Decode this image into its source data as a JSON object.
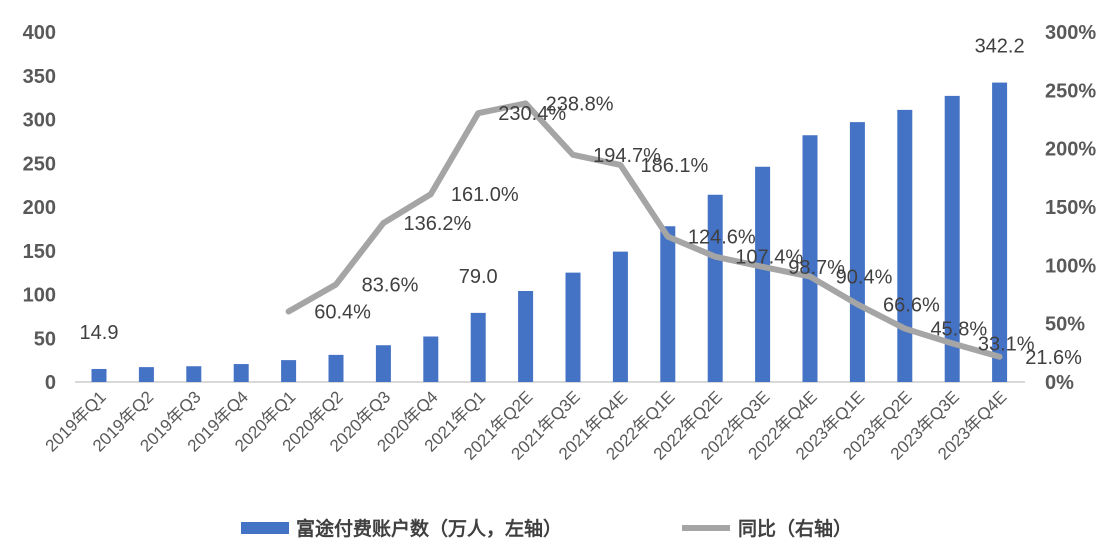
{
  "chart_data": {
    "type": "bar+line",
    "categories": [
      "2019年Q1",
      "2019年Q2",
      "2019年Q3",
      "2019年Q4",
      "2020年Q1",
      "2020年Q2",
      "2020年Q3",
      "2020年Q4",
      "2021年Q1",
      "2021年Q2E",
      "2021年Q3E",
      "2021年Q4E",
      "2022年Q1E",
      "2022年Q2E",
      "2022年Q3E",
      "2022年Q4E",
      "2023年Q1E",
      "2023年Q2E",
      "2023年Q3E",
      "2023年Q4E"
    ],
    "series": [
      {
        "name": "富途付费账户数（万人，左轴）",
        "type": "bar",
        "axis": "left",
        "color": "#4472C4",
        "values": [
          14.9,
          17,
          18,
          20.5,
          25,
          31,
          42,
          52,
          79.0,
          104,
          125,
          149,
          178,
          214,
          246,
          282,
          297,
          311,
          327,
          342.2
        ],
        "labels": {
          "0": "14.9",
          "8": "79.0",
          "19": "342.2"
        }
      },
      {
        "name": "同比（右轴）",
        "type": "line",
        "axis": "right",
        "color": "#A5A5A5",
        "values": [
          null,
          null,
          null,
          null,
          60.4,
          83.6,
          136.2,
          161.0,
          230.4,
          238.8,
          194.7,
          186.1,
          124.6,
          107.4,
          98.7,
          90.4,
          66.6,
          45.8,
          33.1,
          21.6
        ],
        "labels": [
          null,
          null,
          null,
          null,
          "60.4%",
          "83.6%",
          "136.2%",
          "161.0%",
          "230.4%",
          "238.8%",
          "194.7%",
          "186.1%",
          "124.6%",
          "107.4%",
          "98.7%",
          "90.4%",
          "66.6%",
          "45.8%",
          "33.1%",
          "21.6%"
        ]
      }
    ],
    "left_axis": {
      "range": [
        0,
        400
      ],
      "ticks": [
        "0",
        "50",
        "100",
        "150",
        "200",
        "250",
        "300",
        "350",
        "400"
      ]
    },
    "right_axis": {
      "range": [
        0,
        300
      ],
      "ticks": [
        "0%",
        "50%",
        "100%",
        "150%",
        "200%",
        "250%",
        "300%"
      ]
    },
    "grid": false,
    "legend": "bottom"
  }
}
